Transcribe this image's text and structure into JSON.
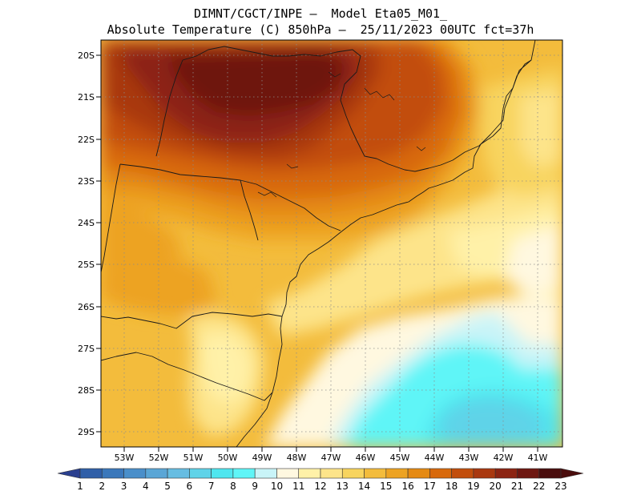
{
  "header": {
    "line1": "DIMNT/CGCT/INPE –  Model Eta05_M01_",
    "line2": "Absolute Temperature (C) 850hPa –  25/11/2023 00UTC fct=37h"
  },
  "map": {
    "lon_range": [
      -54.0,
      -40.6
    ],
    "lat_range": [
      -29.4,
      -19.9
    ],
    "lat_ticks": [
      "20S",
      "21S",
      "22S",
      "23S",
      "24S",
      "25S",
      "26S",
      "27S",
      "28S",
      "29S"
    ],
    "lon_ticks": [
      "53W",
      "52W",
      "51W",
      "50W",
      "49W",
      "48W",
      "47W",
      "46W",
      "45W",
      "44W",
      "43W",
      "42W",
      "41W"
    ],
    "grid": "dotted"
  },
  "colorbar": {
    "labels": [
      "1",
      "2",
      "3",
      "4",
      "5",
      "6",
      "7",
      "8",
      "9",
      "10",
      "11",
      "12",
      "13",
      "14",
      "15",
      "16",
      "17",
      "18",
      "19",
      "20",
      "21",
      "22",
      "23"
    ],
    "colors": [
      "#2a3f8f",
      "#2f5fa8",
      "#3b78bb",
      "#4a8fca",
      "#5aa6d6",
      "#66bde2",
      "#5fd3e8",
      "#4fe6ef",
      "#5ff5f7",
      "#c9f4f8",
      "#fff8e0",
      "#fff1a8",
      "#fde48a",
      "#f8d45e",
      "#f3bc3c",
      "#eda322",
      "#e58a12",
      "#d8690c",
      "#c24e0c",
      "#a9380f",
      "#8c2412",
      "#6e1711",
      "#4a0d0d"
    ]
  }
}
